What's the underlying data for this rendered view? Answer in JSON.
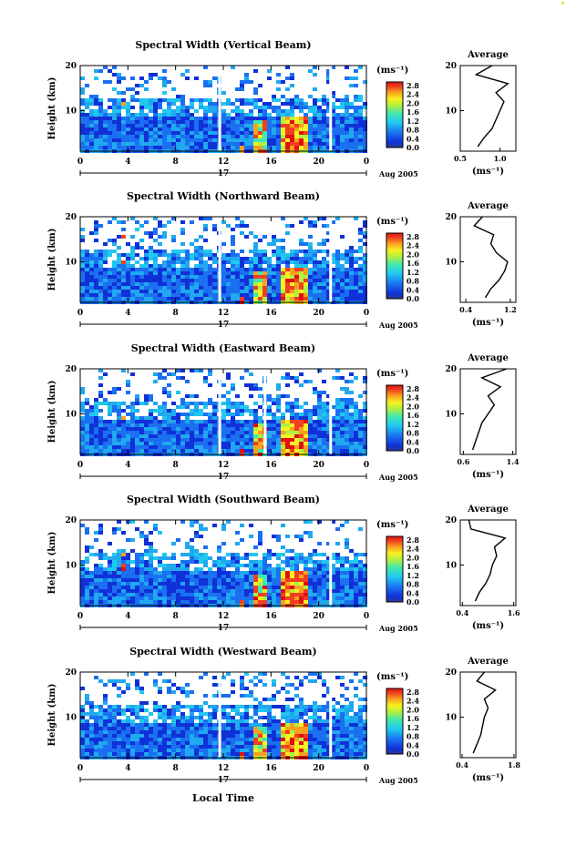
{
  "figure": {
    "x_axis_label": "Local Time",
    "date_label": "Aug 2005",
    "day_label": "17",
    "colorbar_unit": "(ms⁻¹)"
  },
  "chart_data": [
    {
      "type": "heatmap",
      "title": "Spectral Width (Vertical Beam)",
      "xlabel": "",
      "ylabel": "Height (km)",
      "xlim": [
        0,
        24
      ],
      "ylim": [
        1,
        20
      ],
      "x_ticks": [
        "0",
        "4",
        "8",
        "12",
        "16",
        "20",
        "0"
      ],
      "y_ticks": [
        "20",
        "10"
      ],
      "colorbar": {
        "label": "(ms⁻¹)",
        "ticks": [
          "2.8",
          "2.4",
          "2.0",
          "1.6",
          "1.2",
          "0.8",
          "0.4",
          "0.0"
        ],
        "range": [
          0,
          2.8
        ]
      },
      "time_gaps": [
        11.7,
        21.0
      ],
      "average_profile": {
        "title": "Average",
        "xlabel": "(ms⁻¹)",
        "xlim": [
          0.5,
          1.2
        ],
        "x_ticks": [
          "0.5",
          "1.0"
        ],
        "y_ticks": [
          "20",
          "10"
        ],
        "height": [
          2,
          4,
          6,
          8,
          10,
          12,
          14,
          16,
          18,
          20
        ],
        "width": [
          0.72,
          0.8,
          0.9,
          0.95,
          1.0,
          1.05,
          0.95,
          1.1,
          0.7,
          0.9
        ]
      }
    },
    {
      "type": "heatmap",
      "title": "Spectral Width (Northward Beam)",
      "xlabel": "",
      "ylabel": "Height (km)",
      "xlim": [
        0,
        24
      ],
      "ylim": [
        1,
        20
      ],
      "x_ticks": [
        "0",
        "4",
        "8",
        "12",
        "16",
        "20",
        "0"
      ],
      "y_ticks": [
        "20",
        "10"
      ],
      "colorbar": {
        "label": "(ms⁻¹)",
        "ticks": [
          "2.8",
          "2.4",
          "2.0",
          "1.6",
          "1.2",
          "0.8",
          "0.4",
          "0.0"
        ],
        "range": [
          0,
          2.8
        ]
      },
      "time_gaps": [
        11.7,
        21.0
      ],
      "average_profile": {
        "title": "Average",
        "xlabel": "(ms⁻¹)",
        "xlim": [
          0.3,
          1.3
        ],
        "x_ticks": [
          "0.4",
          "1.2"
        ],
        "y_ticks": [
          "20",
          "10"
        ],
        "height": [
          2,
          4,
          6,
          8,
          10,
          12,
          14,
          16,
          18,
          20
        ],
        "width": [
          0.75,
          0.85,
          1.0,
          1.1,
          1.15,
          0.95,
          0.85,
          0.9,
          0.55,
          0.7
        ]
      }
    },
    {
      "type": "heatmap",
      "title": "Spectral Width (Eastward Beam)",
      "xlabel": "",
      "ylabel": "Height (km)",
      "xlim": [
        0,
        24
      ],
      "ylim": [
        1,
        20
      ],
      "x_ticks": [
        "0",
        "4",
        "8",
        "12",
        "16",
        "20",
        "0"
      ],
      "y_ticks": [
        "20",
        "10"
      ],
      "colorbar": {
        "label": "(ms⁻¹)",
        "ticks": [
          "2.8",
          "2.4",
          "2.0",
          "1.6",
          "1.2",
          "0.8",
          "0.4",
          "0.0"
        ],
        "range": [
          0,
          2.8
        ]
      },
      "time_gaps": [
        11.7,
        15.5,
        21.0
      ],
      "average_profile": {
        "title": "Average",
        "xlabel": "(ms⁻¹)",
        "xlim": [
          0.55,
          1.45
        ],
        "x_ticks": [
          "0.6",
          "1.4"
        ],
        "y_ticks": [
          "20",
          "10"
        ],
        "height": [
          2,
          4,
          6,
          8,
          10,
          12,
          14,
          16,
          18,
          20
        ],
        "width": [
          0.75,
          0.8,
          0.85,
          0.9,
          1.0,
          1.1,
          1.0,
          1.2,
          0.9,
          1.3
        ]
      }
    },
    {
      "type": "heatmap",
      "title": "Spectral Width (Southward Beam)",
      "xlabel": "",
      "ylabel": "Height (km)",
      "xlim": [
        0,
        24
      ],
      "ylim": [
        1,
        20
      ],
      "x_ticks": [
        "0",
        "4",
        "8",
        "12",
        "16",
        "20",
        "0"
      ],
      "y_ticks": [
        "20",
        "10"
      ],
      "colorbar": {
        "label": "(ms⁻¹)",
        "ticks": [
          "2.8",
          "2.4",
          "2.0",
          "1.6",
          "1.2",
          "0.8",
          "0.4",
          "0.0"
        ],
        "range": [
          0,
          2.8
        ]
      },
      "time_gaps": [
        21.0
      ],
      "average_profile": {
        "title": "Average",
        "xlabel": "(ms⁻¹)",
        "xlim": [
          0.35,
          1.65
        ],
        "x_ticks": [
          "0.4",
          "1.6"
        ],
        "y_ticks": [
          "20",
          "10"
        ],
        "height": [
          2,
          4,
          6,
          8,
          10,
          12,
          14,
          16,
          18,
          20
        ],
        "width": [
          0.7,
          0.8,
          0.95,
          1.05,
          1.1,
          1.2,
          1.15,
          1.4,
          0.6,
          0.55
        ]
      }
    },
    {
      "type": "heatmap",
      "title": "Spectral Width (Westward Beam)",
      "xlabel": "Local Time",
      "ylabel": "Height (km)",
      "xlim": [
        0,
        24
      ],
      "ylim": [
        1,
        20
      ],
      "x_ticks": [
        "0",
        "4",
        "8",
        "12",
        "16",
        "20",
        "0"
      ],
      "y_ticks": [
        "20",
        "10"
      ],
      "colorbar": {
        "label": "(ms⁻¹)",
        "ticks": [
          "2.8",
          "2.4",
          "2.0",
          "1.6",
          "1.2",
          "0.8",
          "0.4",
          "0.0"
        ],
        "range": [
          0,
          2.8
        ]
      },
      "time_gaps": [
        11.7,
        21.0
      ],
      "average_profile": {
        "title": "Average",
        "xlabel": "(ms⁻¹)",
        "xlim": [
          0.35,
          1.85
        ],
        "x_ticks": [
          "0.4",
          "1.8"
        ],
        "y_ticks": [
          "20",
          "10"
        ],
        "height": [
          2,
          4,
          6,
          8,
          10,
          12,
          14,
          16,
          18,
          20
        ],
        "width": [
          0.7,
          0.8,
          0.9,
          0.95,
          1.0,
          1.1,
          1.0,
          1.3,
          0.8,
          1.0
        ]
      }
    }
  ]
}
